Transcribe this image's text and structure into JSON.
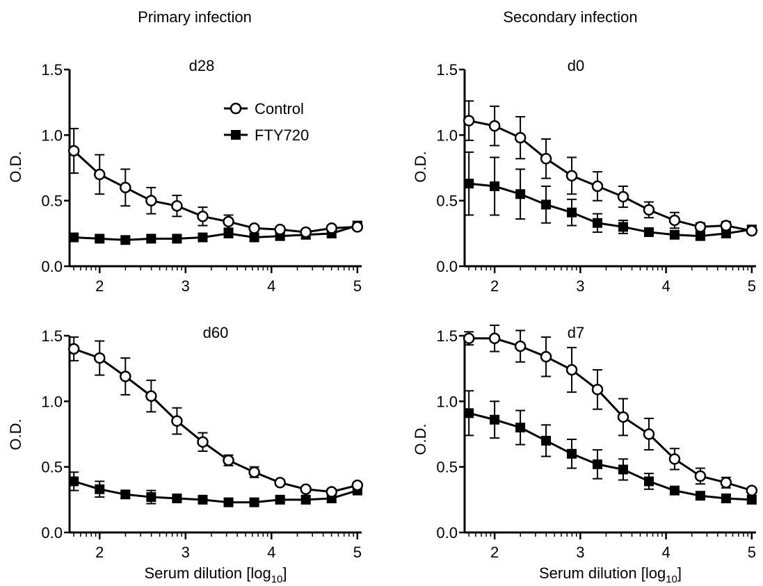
{
  "column_titles": {
    "left": "Primary infection",
    "right": "Secondary infection"
  },
  "legend": {
    "items": [
      {
        "label": "Control",
        "marker": "open-circle"
      },
      {
        "label": "FTY720",
        "marker": "filled-square"
      }
    ]
  },
  "colors": {
    "ink": "#000000",
    "background": "#ffffff"
  },
  "chart_data": [
    {
      "type": "line",
      "title": "d28",
      "xlabel": "",
      "ylabel": "O.D.",
      "xlim": [
        1.65,
        5.05
      ],
      "ylim": [
        0,
        1.5
      ],
      "xticks": [
        "2",
        "3",
        "4",
        "5"
      ],
      "yticks": [
        "0.0",
        "0.5",
        "1.0",
        "1.5"
      ],
      "x_scale": "log10 serum dilution",
      "x": [
        1.7,
        2.0,
        2.3,
        2.6,
        2.9,
        3.2,
        3.5,
        3.8,
        4.1,
        4.4,
        4.7,
        5.0
      ],
      "series": [
        {
          "name": "Control",
          "values": [
            0.88,
            0.7,
            0.6,
            0.5,
            0.46,
            0.38,
            0.34,
            0.29,
            0.28,
            0.26,
            0.29,
            0.3
          ],
          "errors": [
            0.17,
            0.15,
            0.14,
            0.1,
            0.08,
            0.07,
            0.05,
            0.02,
            0.02,
            0.02,
            0.02,
            0.02
          ]
        },
        {
          "name": "FTY720",
          "values": [
            0.22,
            0.21,
            0.2,
            0.21,
            0.21,
            0.22,
            0.25,
            0.22,
            0.23,
            0.24,
            0.25,
            0.31
          ],
          "errors": [
            0.02,
            0.02,
            0.02,
            0.02,
            0.02,
            0.03,
            0.03,
            0.03,
            0.03,
            0.03,
            0.03,
            0.03
          ]
        }
      ],
      "legend_position": "top-right"
    },
    {
      "type": "line",
      "title": "d0",
      "xlabel": "",
      "ylabel": "O.D.",
      "xlim": [
        1.65,
        5.05
      ],
      "ylim": [
        0,
        1.5
      ],
      "xticks": [
        "2",
        "3",
        "4",
        "5"
      ],
      "yticks": [
        "0.0",
        "0.5",
        "1.0",
        "1.5"
      ],
      "x_scale": "log10 serum dilution",
      "x": [
        1.7,
        2.0,
        2.3,
        2.6,
        2.9,
        3.2,
        3.5,
        3.8,
        4.1,
        4.4,
        4.7,
        5.0
      ],
      "series": [
        {
          "name": "Control",
          "values": [
            1.11,
            1.07,
            0.98,
            0.82,
            0.69,
            0.61,
            0.53,
            0.43,
            0.35,
            0.3,
            0.31,
            0.27
          ],
          "errors": [
            0.15,
            0.15,
            0.16,
            0.15,
            0.14,
            0.11,
            0.08,
            0.06,
            0.06,
            0.03,
            0.03,
            0.02
          ]
        },
        {
          "name": "FTY720",
          "values": [
            0.63,
            0.61,
            0.55,
            0.47,
            0.41,
            0.33,
            0.3,
            0.26,
            0.24,
            0.23,
            0.25,
            0.28
          ],
          "errors": [
            0.24,
            0.22,
            0.19,
            0.14,
            0.1,
            0.07,
            0.05,
            0.03,
            0.03,
            0.03,
            0.03,
            0.03
          ]
        }
      ]
    },
    {
      "type": "line",
      "title": "d60",
      "xlabel": "Serum dilution [log",
      "xlabel_sub": "10",
      "xlabel_end": "]",
      "ylabel": "O.D.",
      "xlim": [
        1.65,
        5.05
      ],
      "ylim": [
        0,
        1.5
      ],
      "xticks": [
        "2",
        "3",
        "4",
        "5"
      ],
      "yticks": [
        "0.0",
        "0.5",
        "1.0",
        "1.5"
      ],
      "x_scale": "log10 serum dilution",
      "x": [
        1.7,
        2.0,
        2.3,
        2.6,
        2.9,
        3.2,
        3.5,
        3.8,
        4.1,
        4.4,
        4.7,
        5.0
      ],
      "series": [
        {
          "name": "Control",
          "values": [
            1.4,
            1.33,
            1.19,
            1.04,
            0.85,
            0.69,
            0.55,
            0.46,
            0.38,
            0.33,
            0.31,
            0.36
          ],
          "errors": [
            0.09,
            0.13,
            0.14,
            0.12,
            0.1,
            0.07,
            0.04,
            0.04,
            0.02,
            0.02,
            0.02,
            0.02
          ]
        },
        {
          "name": "FTY720",
          "values": [
            0.39,
            0.33,
            0.29,
            0.27,
            0.26,
            0.25,
            0.23,
            0.23,
            0.25,
            0.25,
            0.26,
            0.32
          ],
          "errors": [
            0.07,
            0.06,
            0.03,
            0.05,
            0.02,
            0.02,
            0.02,
            0.02,
            0.02,
            0.03,
            0.03,
            0.02
          ]
        }
      ]
    },
    {
      "type": "line",
      "title": "d7",
      "xlabel": "Serum dilution [log",
      "xlabel_sub": "10",
      "xlabel_end": "]",
      "ylabel": "O.D.",
      "xlim": [
        1.65,
        5.05
      ],
      "ylim": [
        0,
        1.5
      ],
      "xticks": [
        "2",
        "3",
        "4",
        "5"
      ],
      "yticks": [
        "0.0",
        "0.5",
        "1.0",
        "1.5"
      ],
      "x_scale": "log10 serum dilution",
      "x": [
        1.7,
        2.0,
        2.3,
        2.6,
        2.9,
        3.2,
        3.5,
        3.8,
        4.1,
        4.4,
        4.7,
        5.0
      ],
      "series": [
        {
          "name": "Control",
          "values": [
            1.48,
            1.48,
            1.42,
            1.34,
            1.24,
            1.09,
            0.88,
            0.75,
            0.56,
            0.43,
            0.38,
            0.32
          ],
          "errors": [
            0.05,
            0.1,
            0.12,
            0.15,
            0.17,
            0.15,
            0.14,
            0.12,
            0.08,
            0.06,
            0.04,
            0.02
          ]
        },
        {
          "name": "FTY720",
          "values": [
            0.91,
            0.86,
            0.8,
            0.7,
            0.6,
            0.52,
            0.48,
            0.39,
            0.32,
            0.28,
            0.26,
            0.25
          ],
          "errors": [
            0.17,
            0.14,
            0.13,
            0.12,
            0.11,
            0.11,
            0.08,
            0.06,
            0.03,
            0.03,
            0.03,
            0.03
          ]
        }
      ]
    }
  ]
}
